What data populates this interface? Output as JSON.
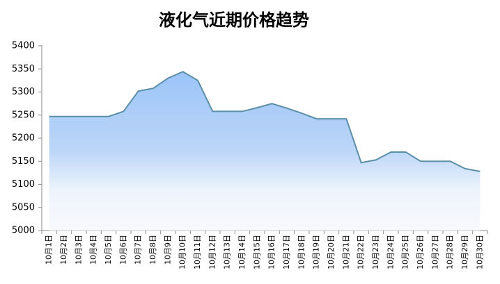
{
  "chart_data": {
    "type": "area",
    "title": "液化气近期价格趋势",
    "categories": [
      "10月1日",
      "10月2日",
      "10月3日",
      "10月4日",
      "10月5日",
      "10月6日",
      "10月7日",
      "10月8日",
      "10月9日",
      "10月10日",
      "10月11日",
      "10月12日",
      "10月13日",
      "10月14日",
      "10月15日",
      "10月16日",
      "10月17日",
      "10月18日",
      "10月19日",
      "10月20日",
      "10月21日",
      "10月22日",
      "10月23日",
      "10月24日",
      "10月25日",
      "10月26日",
      "10月27日",
      "10月28日",
      "10月29日",
      "10月30日"
    ],
    "values": [
      5247,
      5247,
      5247,
      5247,
      5247,
      5258,
      5302,
      5308,
      5330,
      5344,
      5325,
      5258,
      5258,
      5258,
      5266,
      5275,
      5265,
      5254,
      5242,
      5242,
      5242,
      5147,
      5153,
      5170,
      5170,
      5150,
      5150,
      5150,
      5134,
      5128
    ],
    "color": "#5b8fa6",
    "ylim": [
      5000,
      5400
    ],
    "yticks": [
      5000,
      5050,
      5100,
      5150,
      5200,
      5250,
      5300,
      5350,
      5400
    ],
    "grid": false
  }
}
